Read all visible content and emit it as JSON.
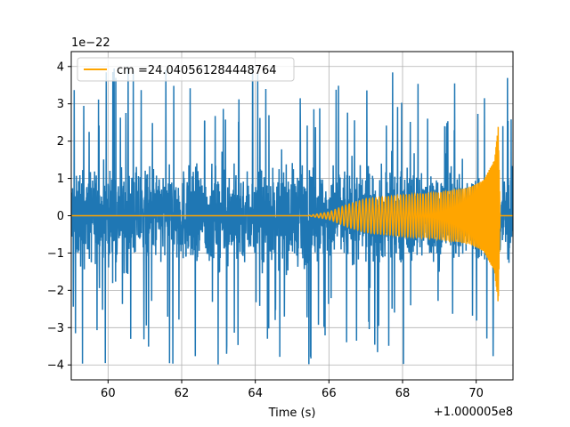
{
  "chart_data": {
    "type": "line",
    "title": "",
    "xlabel": "Time (s)",
    "ylabel": "",
    "x_offset_label": "+1.000005e8",
    "y_scale_label": "1e−22",
    "xlim": [
      59.0,
      71.0
    ],
    "ylim": [
      -4.4,
      4.4
    ],
    "xticks": [
      60,
      62,
      64,
      66,
      68,
      70
    ],
    "xtick_labels": [
      "60",
      "62",
      "64",
      "66",
      "68",
      "70"
    ],
    "yticks": [
      -4,
      -3,
      -2,
      -1,
      0,
      1,
      2,
      3,
      4
    ],
    "ytick_labels": [
      "−4",
      "−3",
      "−2",
      "−1",
      "0",
      "1",
      "2",
      "3",
      "4"
    ],
    "grid": true,
    "legend_position": "top-left",
    "series": [
      {
        "name": "",
        "color": "#1f77b4",
        "kind": "noise",
        "x_range": [
          59.0,
          71.0
        ],
        "amplitude_typical": 1.6,
        "amplitude_peak": 4.0
      },
      {
        "name": "cm =24.040561284448764",
        "color": "#ffa500",
        "kind": "chirp",
        "x_range": [
          59.0,
          71.0
        ],
        "onset": 65.4,
        "merger": 70.6,
        "envelope": [
          [
            65.4,
            0.0
          ],
          [
            66.0,
            0.1
          ],
          [
            66.5,
            0.3
          ],
          [
            67.0,
            0.45
          ],
          [
            68.0,
            0.55
          ],
          [
            69.0,
            0.62
          ],
          [
            69.8,
            0.75
          ],
          [
            70.2,
            0.95
          ],
          [
            70.5,
            1.5
          ],
          [
            70.6,
            2.4
          ],
          [
            70.65,
            0.0
          ]
        ]
      }
    ]
  }
}
